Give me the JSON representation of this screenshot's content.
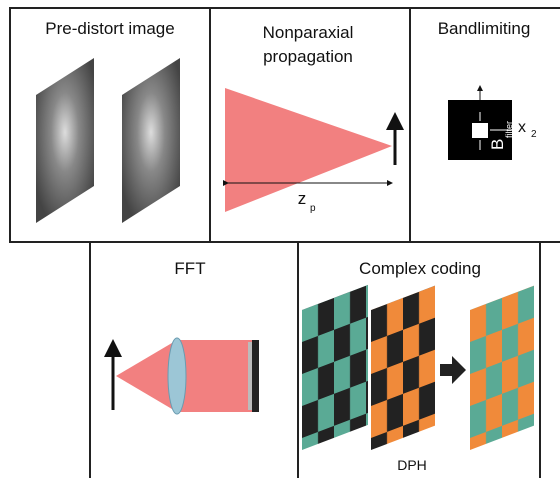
{
  "panels": [
    {
      "title": "Pre-distort image"
    },
    {
      "title_lines": [
        "Nonparaxial",
        "propagation"
      ],
      "distance": {
        "symbol": "z",
        "sub": "p"
      }
    },
    {
      "title": "Bandlimiting",
      "filter": {
        "symbol": "B",
        "sub": "filter"
      },
      "axis": {
        "symbol": "x",
        "sub": "2"
      }
    },
    {
      "title": "FFT"
    },
    {
      "title": "Complex coding",
      "caption": "DPH"
    }
  ]
}
